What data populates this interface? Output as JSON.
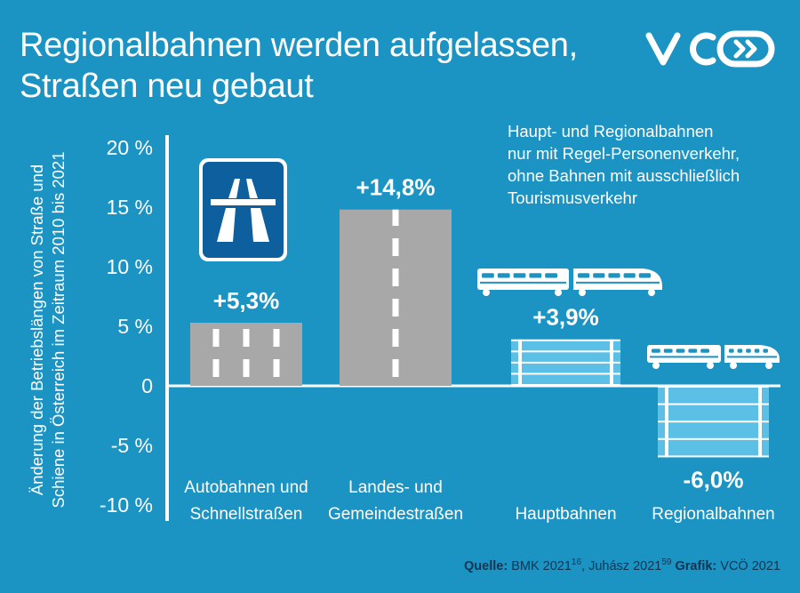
{
  "title_line1": "Regionalbahnen werden aufgelassen,",
  "title_line2": "Straßen neu gebaut",
  "logo": {
    "name": "vcoe-logo",
    "alt": "VCÖ"
  },
  "note": {
    "line1": "Haupt- und Regionalbahnen",
    "line2": "nur mit Regel-Personenverkehr,",
    "line3": "ohne Bahnen mit ausschließlich",
    "line4": "Tourismusverkehr"
  },
  "footer": {
    "source_label": "Quelle:",
    "source1": "BMK 2021",
    "sup1": "16",
    "source2": ", Juhász 2021",
    "sup2": "59",
    "graphic_label": "Grafik:",
    "graphic": "VCÖ 2021"
  },
  "colors": {
    "background": "#1b94c4",
    "road": "#a8a8a8",
    "rail": "#5bbfe6",
    "text": "#ffffff",
    "footer": "#0f3553"
  },
  "chart_data": {
    "type": "bar",
    "ylabel_line1": "Änderung der Betriebslängen von Straße und",
    "ylabel_line2": "Schiene in Österreich im Zeitraum 2010 bis 2021",
    "ylim": [
      -10,
      20
    ],
    "yticks": [
      20,
      15,
      10,
      5,
      0,
      -5,
      -10
    ],
    "ytick_labels": [
      "20 %",
      "15 %",
      "10 %",
      "5 %",
      "0",
      "-5 %",
      "-10 %"
    ],
    "grid": false,
    "legend": "none",
    "categories": [
      {
        "line1": "Autobahnen und",
        "line2": "Schnellstraßen"
      },
      {
        "line1": "Landes- und",
        "line2": "Gemeindestraßen"
      },
      {
        "line1": "",
        "line2": "Hauptbahnen"
      },
      {
        "line1": "",
        "line2": "Regionalbahnen"
      }
    ],
    "values": [
      5.3,
      14.8,
      3.9,
      -6.0
    ],
    "value_labels": [
      "+5,3%",
      "+14,8%",
      "+3,9%",
      "-6,0%"
    ],
    "styles": [
      "road",
      "road",
      "rail",
      "rail"
    ],
    "icons": [
      "motorway-sign-icon",
      "",
      "train-icon",
      "train-icon"
    ]
  }
}
